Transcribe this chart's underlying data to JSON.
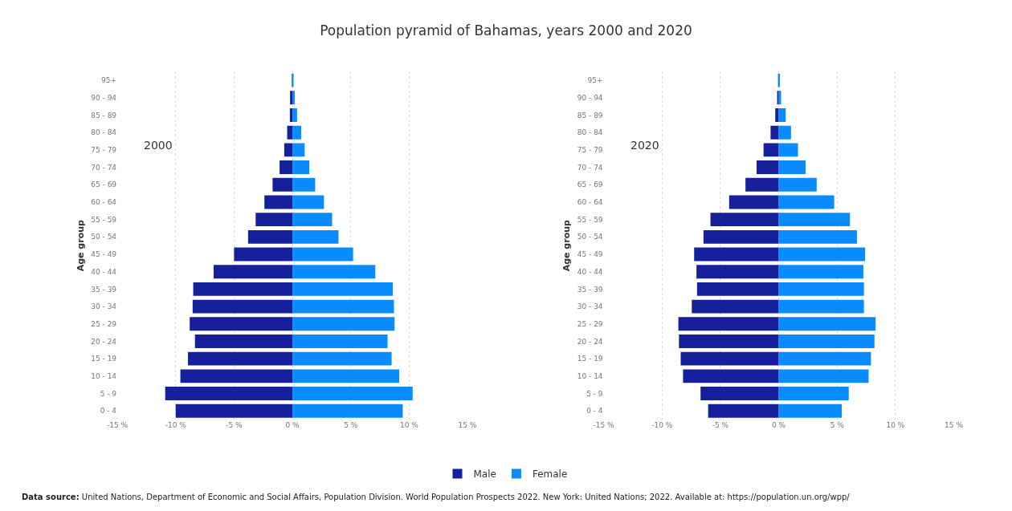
{
  "chart_data": [
    {
      "type": "bar",
      "orientation": "horizontal",
      "stacked": true,
      "title": "Population pyramid of Bahamas, years 2000 and 2020",
      "ylabel": "Age group",
      "categories": [
        "95+",
        "90 - 94",
        "85 - 89",
        "80 - 84",
        "75 - 79",
        "70 - 74",
        "65 - 69",
        "60 - 64",
        "55 - 59",
        "50 - 54",
        "45 - 49",
        "40 - 44",
        "35 - 39",
        "30 - 34",
        "25 - 29",
        "20 - 24",
        "15 - 19",
        "10 - 14",
        "5 - 9",
        "0 - 4"
      ],
      "series": [
        {
          "name": "Male",
          "color": "#16209a",
          "values": [
            null,
            -0.2,
            -0.22,
            -0.45,
            -0.7,
            -1.1,
            -1.7,
            -2.4,
            -3.15,
            -3.8,
            -5.0,
            -6.75,
            -8.5,
            -8.55,
            -8.8,
            -8.35,
            -8.95,
            -9.6,
            -10.9,
            -10.0
          ]
        },
        {
          "name": "Female",
          "color": "#0a8cff",
          "values": [
            0.1,
            0.2,
            0.4,
            0.75,
            1.05,
            1.45,
            1.95,
            2.7,
            3.4,
            3.95,
            5.2,
            7.1,
            8.6,
            8.7,
            8.75,
            8.15,
            8.5,
            9.15,
            10.3,
            9.45
          ]
        }
      ],
      "xlim": [
        -15,
        15
      ],
      "xticks": [
        {
          "value": -15,
          "label": "-15 %"
        },
        {
          "value": -10,
          "label": "-10 %"
        },
        {
          "value": -5,
          "label": "-5 %"
        },
        {
          "value": 0,
          "label": "0 %"
        },
        {
          "value": 5,
          "label": "5 %"
        },
        {
          "value": 10,
          "label": "10 %"
        },
        {
          "value": 15,
          "label": "15 %"
        }
      ],
      "grid": "x",
      "legend": "bottom",
      "annotations": [
        "2000",
        "Data source: United Nations, Department of Economic and Social Affairs, Population Division. World Population Prospects 2022. New York: United Nations; 2022. Available at: https://population.un.org/wpp/"
      ]
    },
    {
      "type": "bar",
      "orientation": "horizontal",
      "stacked": true,
      "ylabel": "Age group",
      "categories": [
        "95+",
        "90 - 94",
        "85 - 89",
        "80 - 84",
        "75 - 79",
        "70 - 74",
        "65 - 69",
        "60 - 64",
        "55 - 59",
        "50 - 54",
        "45 - 49",
        "40 - 44",
        "35 - 39",
        "30 - 34",
        "25 - 29",
        "20 - 24",
        "15 - 19",
        "10 - 14",
        "5 - 9",
        "0 - 4"
      ],
      "series": [
        {
          "name": "Male",
          "color": "#16209a",
          "values": [
            null,
            -0.1,
            -0.3,
            -0.7,
            -1.3,
            -1.9,
            -2.85,
            -4.25,
            -5.85,
            -6.45,
            -7.25,
            -7.05,
            -7.0,
            -7.45,
            -8.6,
            -8.55,
            -8.4,
            -8.2,
            -6.7,
            -6.05
          ]
        },
        {
          "name": "Female",
          "color": "#0a8cff",
          "values": [
            0.1,
            0.2,
            0.6,
            1.05,
            1.65,
            2.3,
            3.25,
            4.75,
            6.1,
            6.7,
            7.4,
            7.25,
            7.3,
            7.3,
            8.3,
            8.2,
            7.9,
            7.7,
            6.0,
            5.4
          ]
        }
      ],
      "xlim": [
        -15,
        15
      ],
      "xticks": [
        {
          "value": -15,
          "label": "-15 %"
        },
        {
          "value": -10,
          "label": "-10 %"
        },
        {
          "value": -5,
          "label": "-5 %"
        },
        {
          "value": 0,
          "label": "0 %"
        },
        {
          "value": 5,
          "label": "5 %"
        },
        {
          "value": 10,
          "label": "10 %"
        },
        {
          "value": 15,
          "label": "15 %"
        }
      ],
      "grid": "x",
      "legend": "bottom",
      "annotations": [
        "2020"
      ]
    }
  ]
}
